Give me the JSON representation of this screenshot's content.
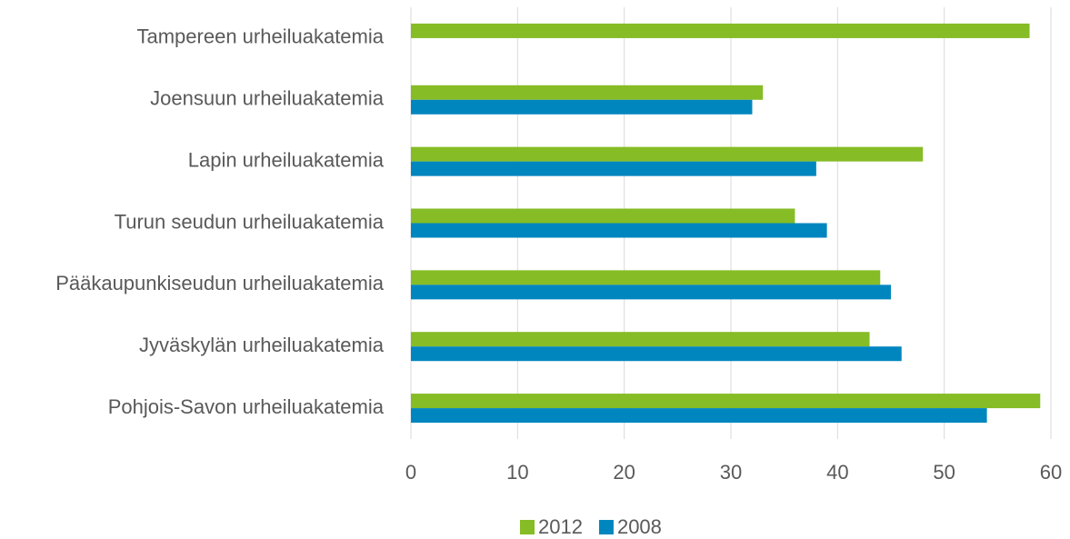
{
  "chart_data": {
    "type": "bar",
    "orientation": "horizontal",
    "categories": [
      "Tampereen urheiluakatemia",
      "Joensuun urheiluakatemia",
      "Lapin urheiluakatemia",
      "Turun seudun urheiluakatemia",
      "Pääkaupunkiseudun urheiluakatemia",
      "Jyväskylän urheiluakatemia",
      "Pohjois-Savon urheiluakatemia"
    ],
    "series": [
      {
        "name": "2012",
        "color": "#86bc25",
        "values": [
          58,
          33,
          48,
          36,
          44,
          43,
          59
        ]
      },
      {
        "name": "2008",
        "color": "#0086bf",
        "values": [
          null,
          32,
          38,
          39,
          45,
          46,
          54
        ]
      }
    ],
    "xlim": [
      0,
      60
    ],
    "xticks": [
      0,
      10,
      20,
      30,
      40,
      50,
      60
    ],
    "grid": true,
    "legend": "bottom"
  }
}
